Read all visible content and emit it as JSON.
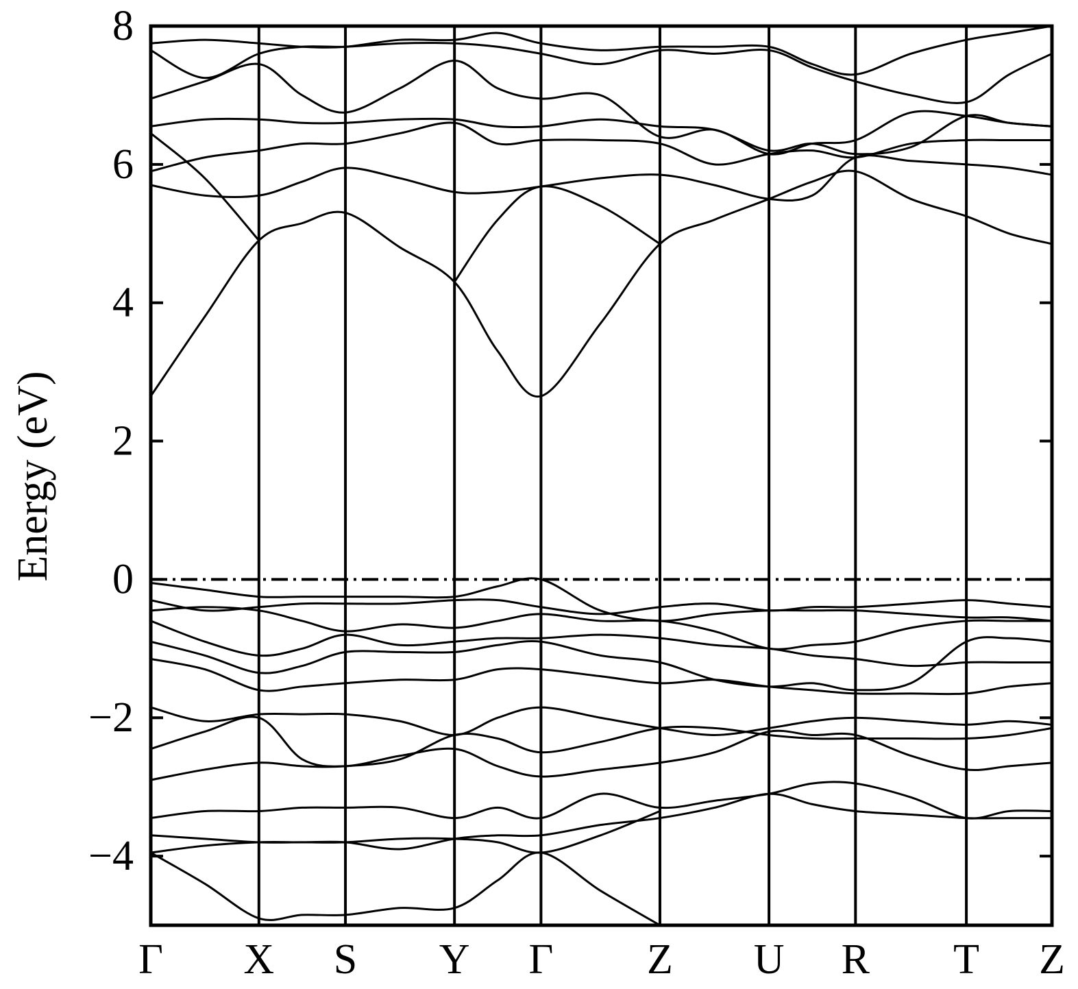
{
  "chart_data": {
    "type": "line",
    "ylabel": "Energy (eV)",
    "x": [
      0,
      0.06,
      0.12,
      0.168,
      0.216,
      0.2765,
      0.337,
      0.385,
      0.433,
      0.499,
      0.565,
      0.6255,
      0.686,
      0.734,
      0.782,
      0.8435,
      0.905,
      0.9525,
      1.0
    ],
    "xlim": [
      0,
      1
    ],
    "ylim": [
      -5,
      8
    ],
    "xticks": [
      {
        "value": 0,
        "label": "Γ"
      },
      {
        "value": 0.12,
        "label": "X"
      },
      {
        "value": 0.216,
        "label": "S"
      },
      {
        "value": 0.337,
        "label": "Y"
      },
      {
        "value": 0.433,
        "label": "Γ"
      },
      {
        "value": 0.565,
        "label": "Z"
      },
      {
        "value": 0.686,
        "label": "U"
      },
      {
        "value": 0.782,
        "label": "R"
      },
      {
        "value": 0.905,
        "label": "T"
      },
      {
        "value": 1.0,
        "label": "Z"
      }
    ],
    "yticks": [
      {
        "value": -4,
        "label": "−4"
      },
      {
        "value": -2,
        "label": "−2"
      },
      0,
      2,
      4,
      6,
      8
    ],
    "reference_line": 0,
    "grid": true,
    "series": [
      {
        "color": "#000000",
        "values": [
          2.65,
          3.8,
          4.9,
          5.15,
          5.3,
          4.8,
          4.3,
          3.3,
          2.65,
          3.7,
          4.85,
          5.2,
          5.5,
          5.75,
          5.9,
          5.5,
          5.25,
          5.0,
          4.85
        ]
      },
      {
        "color": "#000000",
        "values": [
          5.7,
          5.55,
          5.55,
          5.75,
          5.95,
          5.8,
          5.6,
          5.6,
          5.68,
          5.8,
          5.85,
          5.7,
          5.5,
          5.55,
          6.1,
          6.05,
          6.0,
          5.95,
          5.85
        ]
      },
      {
        "color": "#000000",
        "values": [
          5.9,
          6.1,
          6.2,
          6.3,
          6.3,
          6.45,
          6.6,
          6.3,
          6.35,
          6.35,
          6.3,
          6.0,
          6.15,
          6.2,
          6.1,
          6.3,
          6.35,
          6.35,
          6.35
        ]
      },
      {
        "color": "#000000",
        "values": [
          6.55,
          6.65,
          6.65,
          6.6,
          6.6,
          6.65,
          6.65,
          6.55,
          6.55,
          6.65,
          6.55,
          6.5,
          6.2,
          6.3,
          6.15,
          6.25,
          6.7,
          6.6,
          6.55
        ]
      },
      {
        "color": "#000000",
        "values": [
          6.95,
          7.2,
          7.45,
          7.0,
          6.75,
          7.1,
          7.5,
          7.1,
          6.95,
          7.0,
          6.4,
          6.5,
          6.15,
          6.3,
          6.35,
          6.75,
          6.7,
          6.6,
          6.55
        ]
      },
      {
        "color": "#000000",
        "values": [
          7.65,
          7.25,
          7.6,
          7.7,
          7.7,
          7.75,
          7.75,
          7.7,
          7.6,
          7.45,
          7.65,
          7.6,
          7.65,
          7.4,
          7.2,
          7.0,
          6.9,
          7.3,
          7.6
        ]
      },
      {
        "color": "#000000",
        "values": [
          7.75,
          7.8,
          7.75,
          7.7,
          7.7,
          7.8,
          7.8,
          7.9,
          7.75,
          7.65,
          7.7,
          7.7,
          7.7,
          7.45,
          7.3,
          7.6,
          7.8,
          7.9,
          8.0
        ]
      },
      {
        "color": "#000000",
        "values": [
          6.45,
          5.8,
          4.9,
          null,
          null,
          null,
          null,
          null,
          null,
          null,
          null,
          null,
          null,
          null,
          null,
          null,
          null,
          null,
          null
        ]
      },
      {
        "color": "#000000",
        "values": [
          null,
          null,
          null,
          null,
          null,
          null,
          4.3,
          5.2,
          5.68,
          5.4,
          4.85,
          null,
          null,
          null,
          null,
          null,
          null,
          null,
          null
        ]
      },
      {
        "color": "#000000",
        "values": [
          -0.05,
          -0.15,
          -0.25,
          -0.25,
          -0.25,
          -0.25,
          -0.25,
          -0.1,
          0.0,
          -0.45,
          -0.6,
          -0.5,
          -0.45,
          -0.45,
          -0.45,
          -0.5,
          -0.55,
          -0.55,
          -0.6
        ]
      },
      {
        "color": "#000000",
        "values": [
          -0.3,
          -0.45,
          -0.4,
          -0.35,
          -0.35,
          -0.35,
          -0.3,
          -0.3,
          -0.4,
          -0.5,
          -0.4,
          -0.35,
          -0.45,
          -0.4,
          -0.4,
          -0.35,
          -0.3,
          -0.35,
          -0.4
        ]
      },
      {
        "color": "#000000",
        "values": [
          -0.45,
          -0.4,
          -0.45,
          -0.6,
          -0.75,
          -0.65,
          -0.7,
          -0.6,
          -0.5,
          -0.6,
          -0.6,
          -0.75,
          -1.0,
          -0.95,
          -0.9,
          -0.7,
          -0.6,
          -0.6,
          -0.6
        ]
      },
      {
        "color": "#000000",
        "values": [
          -0.6,
          -0.9,
          -1.1,
          -1.0,
          -0.8,
          -0.95,
          -0.9,
          -0.85,
          -0.85,
          -0.8,
          -0.85,
          -0.95,
          -1.0,
          -1.1,
          -1.15,
          -1.25,
          -1.2,
          -1.2,
          -1.2
        ]
      },
      {
        "color": "#000000",
        "values": [
          -0.9,
          -1.1,
          -1.35,
          -1.25,
          -1.05,
          -1.05,
          -1.05,
          -0.95,
          -0.9,
          -1.1,
          -1.2,
          -1.45,
          -1.55,
          -1.5,
          -1.6,
          -1.5,
          -0.9,
          -0.85,
          -0.9
        ]
      },
      {
        "color": "#000000",
        "values": [
          -1.15,
          -1.3,
          -1.6,
          -1.55,
          -1.5,
          -1.45,
          -1.45,
          -1.3,
          -1.3,
          -1.4,
          -1.5,
          -1.45,
          -1.55,
          -1.6,
          -1.65,
          -1.65,
          -1.65,
          -1.55,
          -1.5
        ]
      },
      {
        "color": "#000000",
        "values": [
          -1.85,
          -2.05,
          -1.95,
          -1.95,
          -1.95,
          -2.05,
          -2.25,
          -2.0,
          -1.85,
          -2.0,
          -2.15,
          -2.25,
          -2.15,
          -2.05,
          -2.0,
          -2.05,
          -2.1,
          -2.05,
          -2.1
        ]
      },
      {
        "color": "#000000",
        "values": [
          -2.45,
          -2.2,
          -2.0,
          -2.6,
          -2.7,
          -2.55,
          -2.45,
          -2.7,
          -2.85,
          -2.75,
          -2.65,
          -2.5,
          -2.2,
          -2.25,
          -2.25,
          -2.55,
          -2.75,
          -2.7,
          -2.65
        ]
      },
      {
        "color": "#000000",
        "values": [
          -2.9,
          -2.75,
          -2.65,
          -2.7,
          -2.7,
          -2.6,
          -2.25,
          -2.3,
          -2.5,
          -2.35,
          -2.15,
          -2.15,
          -2.25,
          -2.3,
          -2.3,
          -2.3,
          -2.3,
          -2.25,
          -2.15
        ]
      },
      {
        "color": "#000000",
        "values": [
          -3.45,
          -3.35,
          -3.35,
          -3.3,
          -3.3,
          -3.3,
          -3.45,
          -3.3,
          -3.45,
          -3.1,
          -3.3,
          -3.2,
          -3.1,
          -2.95,
          -2.95,
          -3.15,
          -3.45,
          -3.35,
          -3.35
        ]
      },
      {
        "color": "#000000",
        "values": [
          -3.7,
          -3.75,
          -3.8,
          -3.8,
          -3.8,
          -3.9,
          -3.75,
          -3.7,
          -3.7,
          -3.55,
          -3.45,
          -3.3,
          -3.1,
          -3.25,
          -3.35,
          -3.4,
          -3.45,
          -3.45,
          -3.45
        ]
      },
      {
        "color": "#000000",
        "values": [
          -3.95,
          -3.85,
          -3.8,
          -3.8,
          -3.8,
          -3.75,
          -3.75,
          -3.8,
          -3.95,
          -3.7,
          -3.35,
          null,
          null,
          null,
          null,
          null,
          null,
          null,
          null
        ]
      },
      {
        "color": "#000000",
        "values": [
          -3.95,
          -4.4,
          -4.9,
          -4.85,
          -4.85,
          -4.75,
          -4.75,
          -4.35,
          -3.95,
          -4.5,
          -5.0,
          null,
          null,
          null,
          null,
          null,
          null,
          null,
          null
        ]
      }
    ]
  }
}
